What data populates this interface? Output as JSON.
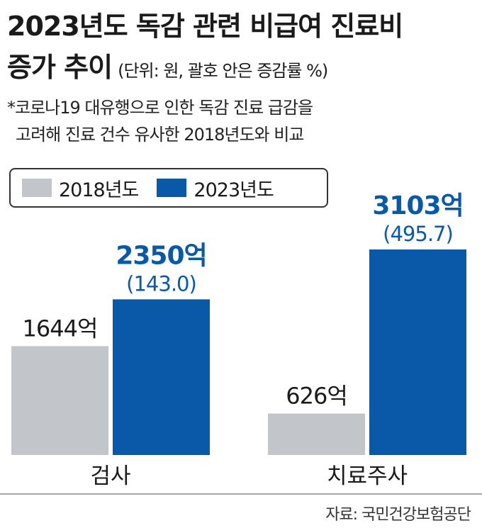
{
  "header": {
    "title_line1": "2023년도 독감 관련 비급여 진료비",
    "title_line2": "증가 추이",
    "unit_note": "(단위: 원, 괄호 안은 증감률 %)",
    "note_line1": "*코로나19 대유행으로 인한 독감 진료 급감을",
    "note_line2": "고려해 진료 건수 유사한 2018년도와 비교"
  },
  "legend": [
    {
      "label": "2018년도",
      "color": "#c2c6ca"
    },
    {
      "label": "2023년도",
      "color": "#0a59a8"
    }
  ],
  "chart_data": {
    "type": "bar",
    "categories": [
      "검사",
      "치료주사"
    ],
    "series": [
      {
        "name": "2018년도",
        "values": [
          1644,
          626
        ],
        "labels": [
          "1644억",
          "626억"
        ],
        "color": "#c2c6ca"
      },
      {
        "name": "2023년도",
        "values": [
          2350,
          3103
        ],
        "labels": [
          "2350억",
          "3103억"
        ],
        "change_labels": [
          "(143.0)",
          "(495.7)"
        ],
        "color": "#0a59a8"
      }
    ],
    "ylim": [
      0,
      3103
    ],
    "grid": false,
    "legend_position": "top-left"
  },
  "source": "자료: 국민건강보험공단"
}
